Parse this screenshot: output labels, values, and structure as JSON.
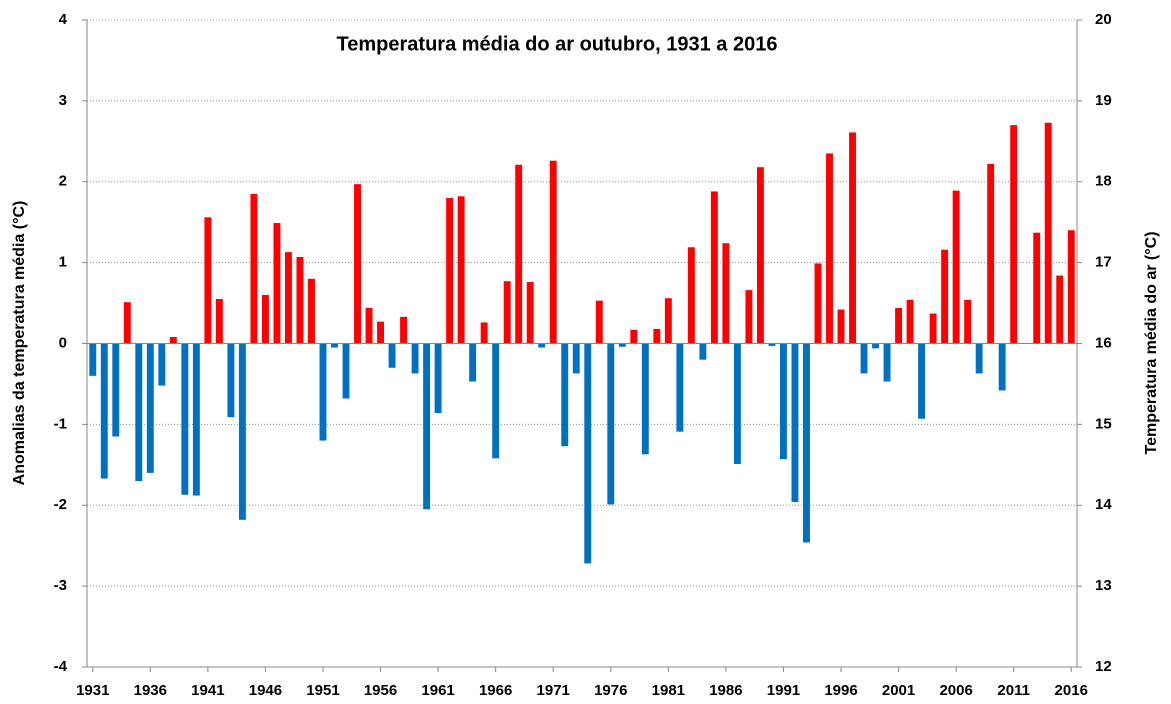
{
  "chart_data": {
    "type": "bar",
    "title": "Temperatura média do ar outubro, 1931 a 2016",
    "y_label": "Anomalias da temperatura média (°C)",
    "y2_label": "Temperatura média do ar (°C)",
    "x": [
      1931,
      1932,
      1933,
      1934,
      1935,
      1936,
      1937,
      1938,
      1939,
      1940,
      1941,
      1942,
      1943,
      1944,
      1945,
      1946,
      1947,
      1948,
      1949,
      1950,
      1951,
      1952,
      1953,
      1954,
      1955,
      1956,
      1957,
      1958,
      1959,
      1960,
      1961,
      1962,
      1963,
      1964,
      1965,
      1966,
      1967,
      1968,
      1969,
      1970,
      1971,
      1972,
      1973,
      1974,
      1975,
      1976,
      1977,
      1978,
      1979,
      1980,
      1981,
      1982,
      1983,
      1984,
      1985,
      1986,
      1987,
      1988,
      1989,
      1990,
      1991,
      1992,
      1993,
      1994,
      1995,
      1996,
      1997,
      1998,
      1999,
      2000,
      2001,
      2002,
      2003,
      2004,
      2005,
      2006,
      2007,
      2008,
      2009,
      2010,
      2011,
      2012,
      2013,
      2014,
      2015,
      2016
    ],
    "values": [
      -0.4,
      -1.67,
      -1.15,
      0.51,
      -1.7,
      -1.6,
      -0.52,
      0.08,
      -1.87,
      -1.88,
      1.56,
      0.55,
      -0.91,
      -2.18,
      1.85,
      0.6,
      1.49,
      1.13,
      1.07,
      0.8,
      -1.2,
      -0.05,
      -0.68,
      1.97,
      0.44,
      0.27,
      -0.3,
      0.33,
      -0.37,
      -2.05,
      -0.86,
      1.8,
      1.82,
      -0.47,
      0.26,
      -1.42,
      0.77,
      2.21,
      0.76,
      -0.05,
      2.26,
      -1.27,
      -0.37,
      -2.72,
      0.53,
      -1.99,
      -0.04,
      0.17,
      -1.37,
      0.18,
      0.56,
      -1.09,
      1.19,
      -0.2,
      1.88,
      1.24,
      -1.49,
      0.66,
      2.18,
      -0.03,
      -1.43,
      -1.96,
      -2.46,
      0.99,
      2.35,
      0.42,
      2.61,
      -0.37,
      -0.06,
      -0.47,
      0.44,
      0.54,
      -0.93,
      0.37,
      1.16,
      1.89,
      0.54,
      -0.37,
      2.22,
      -0.58,
      2.7,
      0,
      1.37,
      2.73,
      0.84,
      1.4
    ],
    "positive_color": "#ff0000",
    "negative_color": "#0070c0",
    "xlim": [
      1930.5,
      2016.5
    ],
    "xticks": [
      1931,
      1936,
      1941,
      1946,
      1951,
      1956,
      1961,
      1966,
      1971,
      1976,
      1981,
      1986,
      1991,
      1996,
      2001,
      2006,
      2011,
      2016
    ],
    "ylim": [
      -4,
      4
    ],
    "yticks": [
      -4,
      -3,
      -2,
      -1,
      0,
      1,
      2,
      3,
      4
    ],
    "y2lim": [
      12,
      20
    ],
    "y2ticks": [
      12,
      13,
      14,
      15,
      16,
      17,
      18,
      19,
      20
    ],
    "grid": true
  }
}
